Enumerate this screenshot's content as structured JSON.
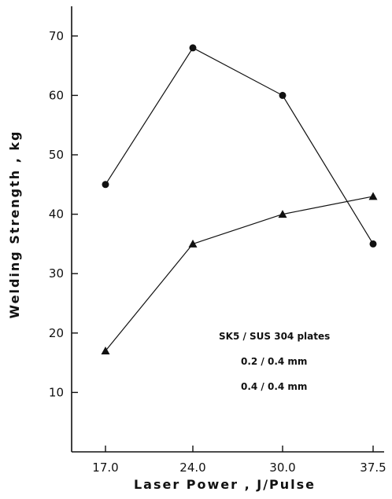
{
  "chart_data": {
    "type": "line",
    "x": [
      17.0,
      24.0,
      30.0,
      37.5
    ],
    "x_tick_labels": [
      "17.0",
      "24.0",
      "30.0",
      "37.5"
    ],
    "xlabel": "Laser Power , J/Pulse",
    "ylabel": "Welding Strength , kg",
    "ylim": [
      0,
      75
    ],
    "y_ticks": [
      10,
      20,
      30,
      40,
      50,
      60,
      70
    ],
    "y_tick_labels": [
      "10",
      "20",
      "30",
      "40",
      "50",
      "60",
      "70"
    ],
    "grid": false,
    "legend_title": "SK5 / SUS 304 plates",
    "legend_placement": "lower-right",
    "series": [
      {
        "name": "0.2 / 0.4 mm",
        "marker": "circle",
        "values": [
          45,
          68,
          60,
          35
        ]
      },
      {
        "name": "0.4 / 0.4 mm",
        "marker": "triangle",
        "values": [
          17,
          35,
          40,
          43
        ]
      }
    ],
    "line_color": "#111111"
  }
}
